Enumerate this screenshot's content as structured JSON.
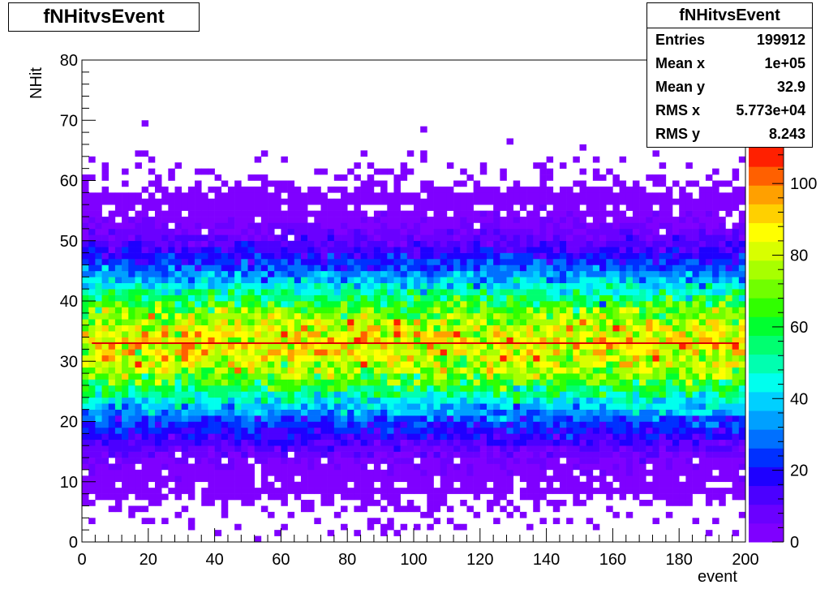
{
  "canvas_title": "fNHitvsEvent",
  "stats": {
    "title": "fNHitvsEvent",
    "rows": [
      {
        "label": "Entries",
        "value": "199912"
      },
      {
        "label": "Mean x",
        "value": "1e+05"
      },
      {
        "label": "Mean y",
        "value": "32.9"
      },
      {
        "label": "RMS x",
        "value": "5.773e+04"
      },
      {
        "label": "RMS y",
        "value": "8.243"
      }
    ]
  },
  "chart_data": {
    "type": "heatmap",
    "title": "fNHitvsEvent",
    "xlabel": "event",
    "ylabel": "NHit",
    "xlim": [
      0,
      200
    ],
    "ylim": [
      0,
      80
    ],
    "x_ticks": [
      "0",
      "20",
      "40",
      "60",
      "80",
      "100",
      "120",
      "140",
      "160",
      "180",
      "200"
    ],
    "y_ticks": [
      "0",
      "10",
      "20",
      "30",
      "40",
      "50",
      "60",
      "70",
      "80"
    ],
    "z_ticks": [
      "0",
      "20",
      "40",
      "60",
      "80",
      "100"
    ],
    "zlim": [
      0,
      110
    ],
    "bins_x": 100,
    "bins_y": 80,
    "profile": {
      "y_mean": 32.9,
      "y_rms": 8.243,
      "peak_count": 105,
      "entries": 199912
    },
    "mean_line_y": 33,
    "mean_line_color": "#dd0000",
    "palette": [
      "#7f00ff",
      "#6a00ff",
      "#4b00ff",
      "#1e00ff",
      "#0030ff",
      "#0070ff",
      "#00a0ff",
      "#00d0ff",
      "#00ffee",
      "#00ffb0",
      "#00ff70",
      "#00ff30",
      "#30ff00",
      "#70ff00",
      "#a8ff00",
      "#d8ff00",
      "#ffff00",
      "#ffd000",
      "#ffa000",
      "#ff6000",
      "#ff2000"
    ],
    "grid": false
  }
}
